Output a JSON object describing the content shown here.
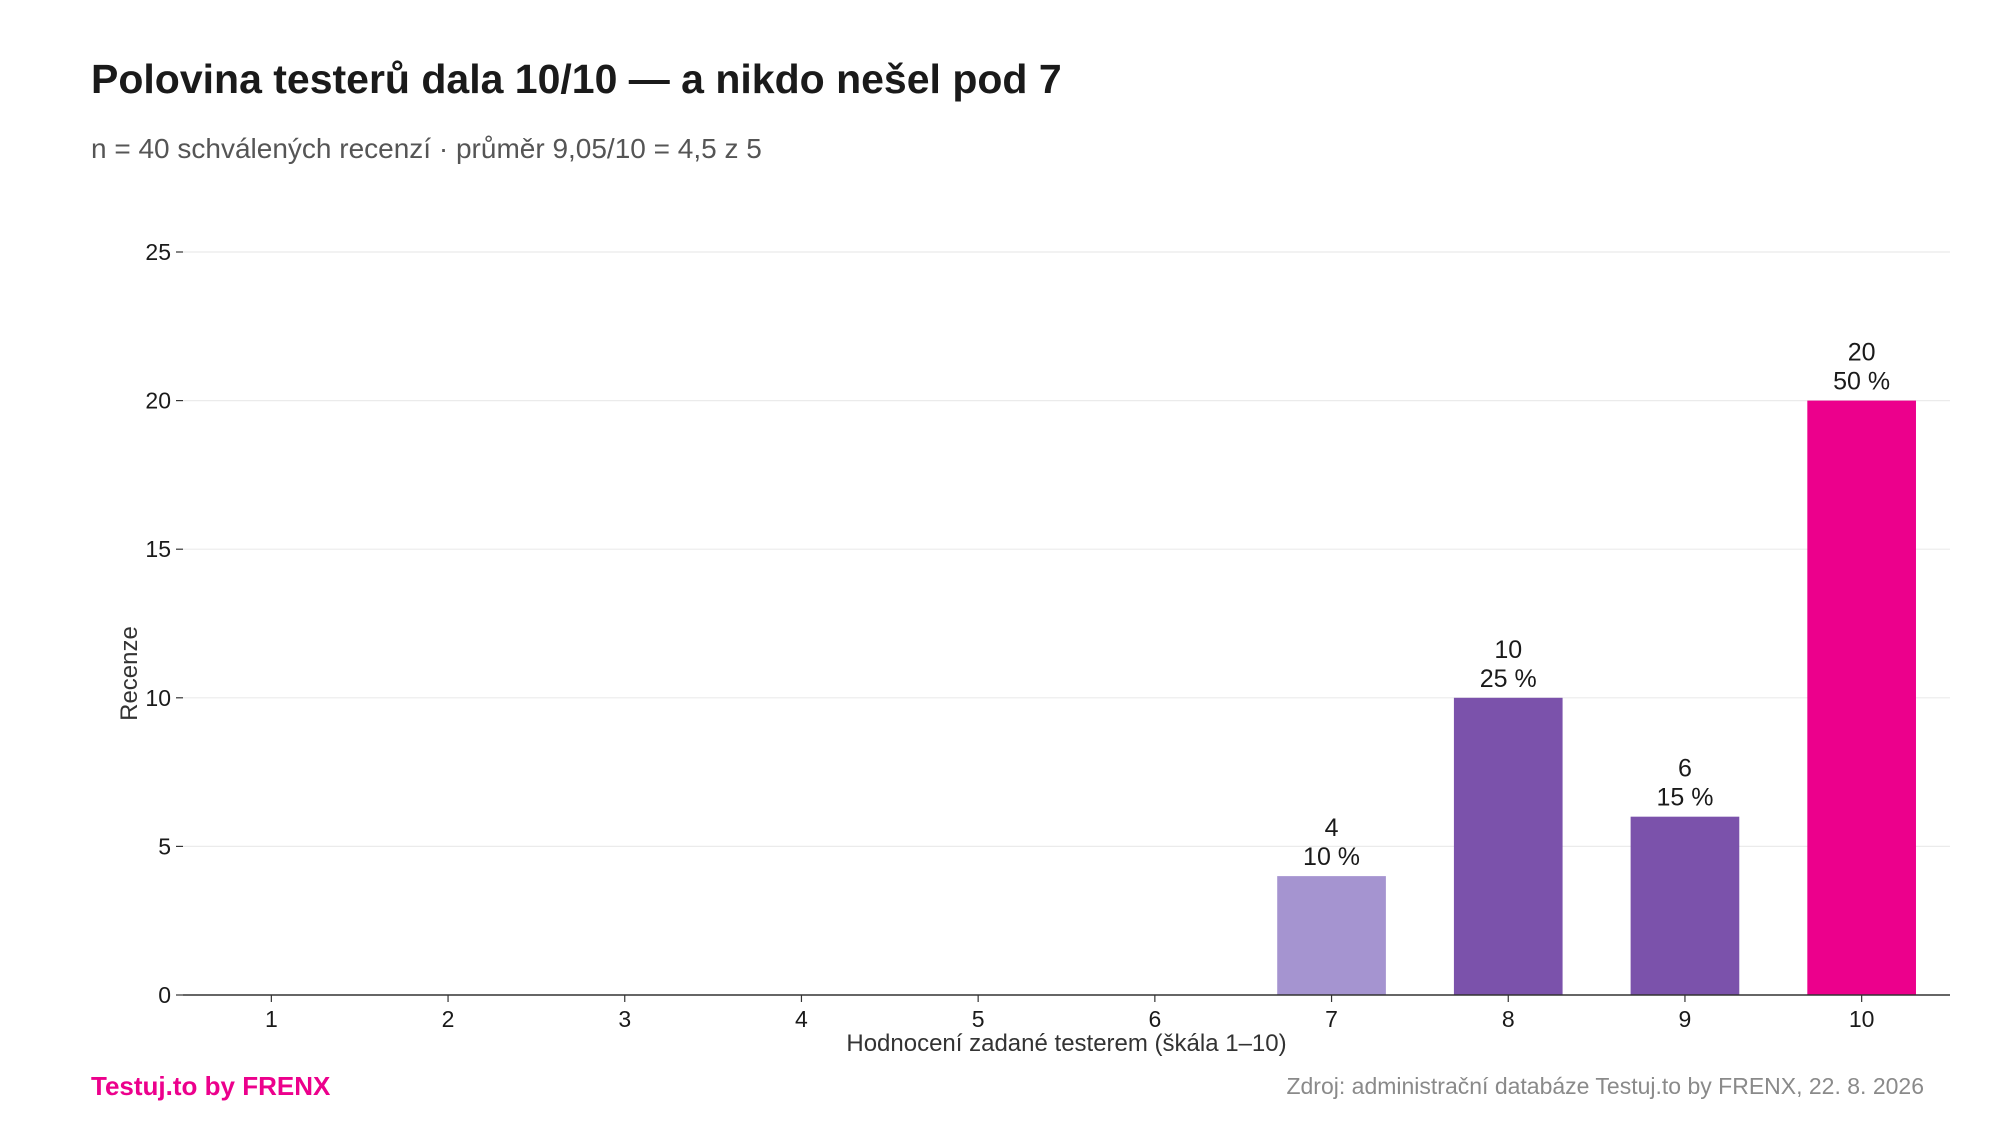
{
  "header": {
    "title": "Polovina testerů dala 10/10 — a nikdo nešel pod 7",
    "subtitle": "n = 40 schválených recenzí · průměr 9,05/10 = 4,5 z 5"
  },
  "footer": {
    "brand": "Testuj.to by FRENX",
    "source": "Zdroj: administrační databáze Testuj.to by FRENX, 22. 8. 2026"
  },
  "colors": {
    "brand": "#ec008c",
    "bar_light": "#a594d0",
    "bar_mid": "#7b52ab",
    "bar_highlight": "#ec008c",
    "grid": "#ebebeb",
    "axis": "#333333"
  },
  "chart_data": {
    "type": "bar",
    "categories": [
      "1",
      "2",
      "3",
      "4",
      "5",
      "6",
      "7",
      "8",
      "9",
      "10"
    ],
    "values": [
      0,
      0,
      0,
      0,
      0,
      0,
      4,
      10,
      6,
      20
    ],
    "value_labels": [
      "",
      "",
      "",
      "",
      "",
      "",
      "4",
      "10",
      "6",
      "20"
    ],
    "percent_labels": [
      "",
      "",
      "",
      "",
      "",
      "",
      "10 %",
      "25 %",
      "15 %",
      "50 %"
    ],
    "bar_colors": [
      "#a594d0",
      "#a594d0",
      "#a594d0",
      "#a594d0",
      "#a594d0",
      "#a594d0",
      "#a594d0",
      "#7b52ab",
      "#7b52ab",
      "#ec008c"
    ],
    "xlabel": "Hodnocení zadané testerem (škála 1–10)",
    "ylabel": "Recenze",
    "ylim": [
      0,
      25
    ],
    "yticks": [
      0,
      5,
      10,
      15,
      20,
      25
    ],
    "grid": true
  }
}
